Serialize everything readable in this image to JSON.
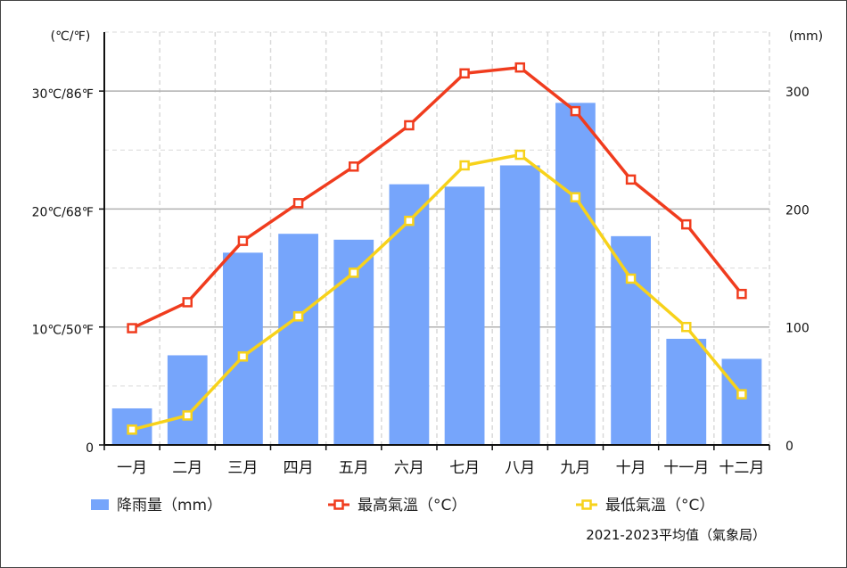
{
  "chart_data": {
    "type": "bar",
    "categories": [
      "一月",
      "二月",
      "三月",
      "四月",
      "五月",
      "六月",
      "七月",
      "八月",
      "九月",
      "十月",
      "十一月",
      "十二月"
    ],
    "series": [
      {
        "name": "降雨量（mm）",
        "type": "bar",
        "axis": "right",
        "color": "#76a5fb",
        "values": [
          31,
          76,
          163,
          179,
          174,
          221,
          219,
          237,
          290,
          177,
          90,
          73
        ]
      },
      {
        "name": "最高氣溫（°C）",
        "type": "line",
        "axis": "left",
        "color": "#f03c1e",
        "values": [
          9.9,
          12.1,
          17.3,
          20.5,
          23.6,
          27.1,
          31.5,
          32.0,
          28.3,
          22.5,
          18.7,
          12.8
        ]
      },
      {
        "name": "最低氣溫（°C）",
        "type": "line",
        "axis": "left",
        "color": "#f7d21b",
        "values": [
          1.3,
          2.5,
          7.5,
          10.9,
          14.6,
          19.0,
          23.7,
          24.6,
          21.0,
          14.1,
          10.0,
          4.3
        ]
      }
    ],
    "left_axis": {
      "unit_label": "(℃/℉)",
      "ticks": [
        {
          "value": 0,
          "label": "0"
        },
        {
          "value": 10,
          "label": "10℃/50℉"
        },
        {
          "value": 20,
          "label": "20℃/68℉"
        },
        {
          "value": 30,
          "label": "30℃/86℉"
        }
      ],
      "ylim": [
        0,
        35
      ]
    },
    "right_axis": {
      "unit_label": "(mm)",
      "ticks": [
        {
          "value": 0,
          "label": "0"
        },
        {
          "value": 100,
          "label": "100"
        },
        {
          "value": 200,
          "label": "200"
        },
        {
          "value": 300,
          "label": "300"
        }
      ],
      "ylim": [
        0,
        350
      ]
    },
    "grid": true,
    "legend_position": "bottom",
    "source_note": "2021-2023平均值（氣象局）"
  }
}
